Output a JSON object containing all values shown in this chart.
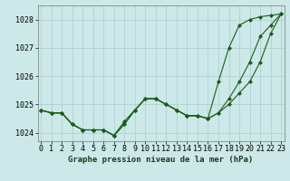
{
  "title": "Graphe pression niveau de la mer (hPa)",
  "background_color": "#cce8e8",
  "grid_color": "#aacece",
  "line_color": "#1a5c1a",
  "x": [
    0,
    1,
    2,
    3,
    4,
    5,
    6,
    7,
    8,
    9,
    10,
    11,
    12,
    13,
    14,
    15,
    16,
    17,
    18,
    19,
    20,
    21,
    22,
    23
  ],
  "y_main": [
    1024.8,
    1024.7,
    1024.7,
    1024.3,
    1024.1,
    1024.1,
    1024.1,
    1023.9,
    1024.3,
    1024.8,
    1025.2,
    1025.2,
    1025.0,
    1024.8,
    1024.6,
    1024.6,
    1024.5,
    1024.7,
    1025.2,
    1025.8,
    1026.5,
    1027.4,
    1027.8,
    1028.2
  ],
  "y_upper": [
    1024.8,
    1024.7,
    1024.7,
    1024.3,
    1024.1,
    1024.1,
    1024.1,
    1023.9,
    1024.3,
    1024.8,
    1025.2,
    1025.2,
    1025.0,
    1024.8,
    1024.6,
    1024.6,
    1024.5,
    1025.8,
    1027.0,
    1027.8,
    1028.0,
    1028.1,
    1028.15,
    1028.2
  ],
  "y_lower": [
    1024.8,
    1024.7,
    1024.7,
    1024.3,
    1024.1,
    1024.1,
    1024.1,
    1023.9,
    1024.4,
    1024.8,
    1025.2,
    1025.2,
    1025.0,
    1024.8,
    1024.6,
    1024.6,
    1024.5,
    1024.7,
    1025.0,
    1025.4,
    1025.8,
    1026.5,
    1027.5,
    1028.2
  ],
  "ylim": [
    1023.7,
    1028.5
  ],
  "xlim": [
    -0.3,
    23.3
  ],
  "yticks": [
    1024,
    1025,
    1026,
    1027,
    1028
  ],
  "xticks": [
    0,
    1,
    2,
    3,
    4,
    5,
    6,
    7,
    8,
    9,
    10,
    11,
    12,
    13,
    14,
    15,
    16,
    17,
    18,
    19,
    20,
    21,
    22,
    23
  ],
  "tick_fontsize": 6.0,
  "title_fontsize": 6.5,
  "marker": "D",
  "markersize": 2.0,
  "linewidth": 0.8
}
